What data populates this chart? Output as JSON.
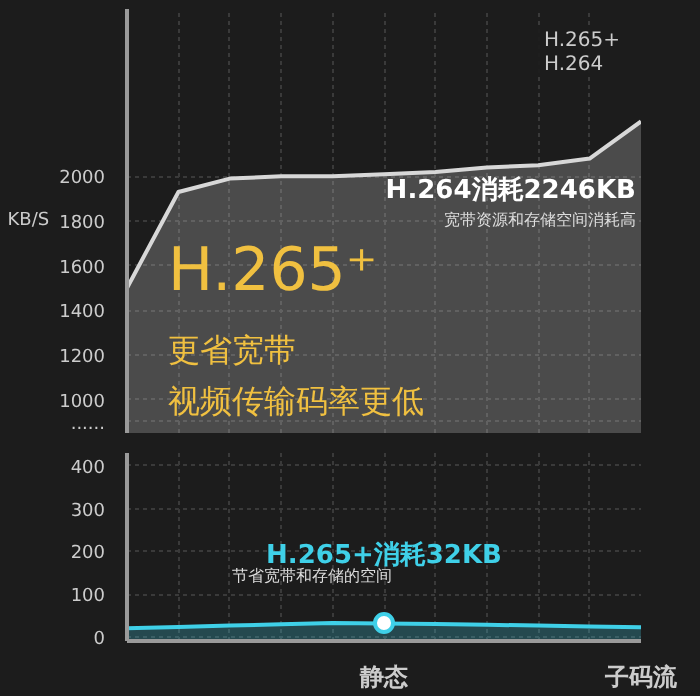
{
  "chart_data": [
    {
      "type": "area",
      "ylabel": "KB/S",
      "categories": [
        null,
        null,
        null,
        null,
        null,
        null,
        null,
        null,
        null,
        null,
        null
      ],
      "tick_labels": "y",
      "ylim": [
        850,
        2750
      ],
      "yticks": [
        {
          "value": 900,
          "label": "......"
        },
        1000,
        1200,
        1400,
        1600,
        1800,
        2000
      ],
      "grid": true,
      "legend": "top right",
      "marker": "none",
      "series": [
        {
          "name": "H.264",
          "color": "#d8d8d8",
          "values": [
            1500,
            1930,
            1990,
            2000,
            2000,
            2010,
            2020,
            2040,
            2050,
            2080,
            2246
          ]
        }
      ],
      "annotations": [
        "H.264消耗2246KB",
        "宽带资源和存储空间消耗高",
        "H.265⁺",
        "更省宽带",
        "视频传输码率更低"
      ]
    },
    {
      "type": "area",
      "categories": [
        null,
        null,
        null,
        null,
        null,
        "静态",
        null,
        null,
        null,
        null,
        "子码流"
      ],
      "ylim": [
        -10,
        430
      ],
      "yticks": [
        0,
        100,
        200,
        300,
        400
      ],
      "grid": true,
      "marker": "none",
      "series": [
        {
          "name": "H.265+",
          "color": "#3fd0e8",
          "values": [
            20,
            23,
            26,
            29,
            32,
            31,
            30,
            28,
            26,
            24,
            22
          ]
        }
      ],
      "annotations": [
        {
          "text": "H.265+消耗32KB",
          "x": "静态",
          "y": 32
        },
        "节省宽带和存储的空间"
      ]
    }
  ]
}
